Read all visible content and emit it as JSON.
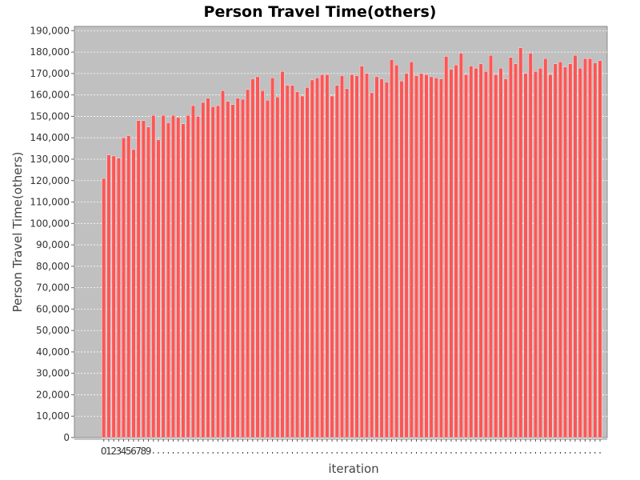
{
  "chart_data": {
    "type": "bar",
    "title": "Person Travel Time(others)",
    "xlabel": "iteration",
    "ylabel": "Person Travel Time(others)",
    "ylim": [
      0,
      192000
    ],
    "yticks": [
      0,
      10000,
      20000,
      30000,
      40000,
      50000,
      60000,
      70000,
      80000,
      90000,
      100000,
      110000,
      120000,
      130000,
      140000,
      150000,
      160000,
      170000,
      180000,
      190000
    ],
    "ytick_labels": [
      "0",
      "10,000",
      "20,000",
      "30,000",
      "40,000",
      "50,000",
      "60,000",
      "70,000",
      "80,000",
      "90,000",
      "100,000",
      "110,000",
      "120,000",
      "130,000",
      "140,000",
      "150,000",
      "160,000",
      "170,000",
      "180,000",
      "190,000"
    ],
    "visible_xtick_labels": [
      "0",
      "1",
      "2",
      "3",
      "4",
      "5",
      "6",
      "7",
      "8",
      "9"
    ],
    "grid": true,
    "legend": "none",
    "colors": {
      "bar": "#ff5555",
      "plot_background": "#c0c0c0",
      "gridline": "#ffffff"
    },
    "series": [
      {
        "values": [
          121000,
          132000,
          131500,
          130500,
          140000,
          141000,
          134500,
          148000,
          148000,
          145000,
          150500,
          139000,
          150500,
          147000,
          150500,
          149500,
          146500,
          150500,
          155000,
          150000,
          156500,
          158500,
          154500,
          155000,
          162000,
          157000,
          155500,
          158500,
          158000,
          162500,
          167500,
          168500,
          162000,
          157500,
          168000,
          159000,
          171000,
          164500,
          164500,
          161500,
          159500,
          163500,
          167000,
          168000,
          169500,
          169500,
          159500,
          164500,
          169000,
          163000,
          169500,
          169000,
          173500,
          170000,
          161000,
          168500,
          167500,
          166000,
          176500,
          174000,
          166500,
          170000,
          175500,
          169000,
          170000,
          169500,
          168500,
          168000,
          167500,
          178000,
          172000,
          174000,
          179500,
          169500,
          173500,
          172500,
          174500,
          171000,
          178500,
          169500,
          172500,
          167500,
          177500,
          174500,
          182000,
          170000,
          179500,
          171000,
          172500,
          177000,
          169500,
          174500,
          175500,
          173000,
          174500,
          178500,
          172500,
          177000,
          177000,
          175000,
          176000
        ]
      }
    ]
  }
}
